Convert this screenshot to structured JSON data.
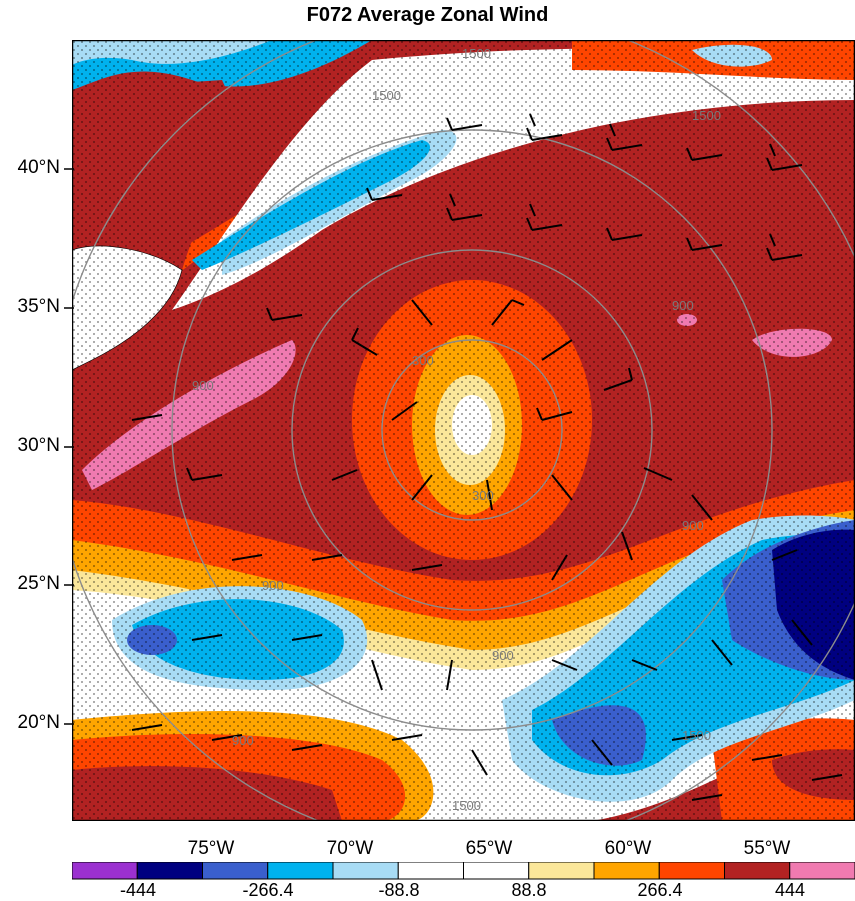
{
  "title": "F072 Average Zonal Wind",
  "lat_labels": [
    "40°N",
    "35°N",
    "30°N",
    "25°N",
    "20°N"
  ],
  "lon_labels": [
    "75°W",
    "70°W",
    "65°W",
    "60°W",
    "55°W"
  ],
  "colorbar": {
    "colors": [
      "#9b30d0",
      "#000080",
      "#3a5fcd",
      "#00b2ee",
      "#a8dcf5",
      "#ffffff",
      "#ffffff",
      "#fbe79a",
      "#ffa500",
      "#ff4500",
      "#b22222",
      "#f07ab0"
    ],
    "labels": [
      "-444",
      "-266.4",
      "-88.8",
      "88.8",
      "266.4",
      "444"
    ]
  },
  "contour_labels": [
    "1500",
    "1500",
    "1500",
    "900",
    "900",
    "900",
    "900",
    "900",
    "300",
    "300",
    "900",
    "1500",
    "1500"
  ]
}
